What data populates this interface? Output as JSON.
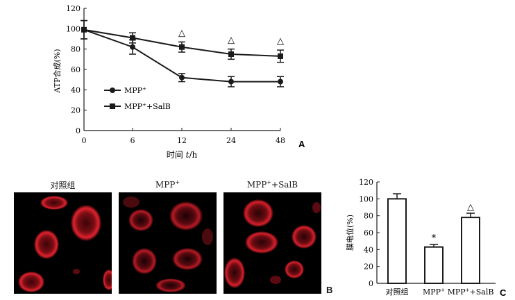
{
  "panelA": {
    "letter": "A",
    "chart_data": {
      "type": "line",
      "x": [
        0,
        6,
        12,
        24,
        48
      ],
      "xticks": [
        "0",
        "6",
        "12",
        "24",
        "48"
      ],
      "xlabel_main": "时间 ",
      "xlabel_var": "t",
      "xlabel_unit": "/h",
      "ylabel": "ATP合成(%)",
      "ylim": [
        0,
        120
      ],
      "yticks": [
        "0",
        "20",
        "40",
        "60",
        "80",
        "100",
        "120"
      ],
      "legend_position": "lower-left",
      "series": [
        {
          "name": "MPP+",
          "legend_base": "MPP",
          "legend_sup": "+",
          "legend_suffix": "",
          "marker": "circle",
          "values": [
            99,
            82,
            52,
            48,
            48
          ],
          "errors": [
            9,
            7,
            4,
            5,
            5
          ]
        },
        {
          "name": "MPP+ +SalB",
          "legend_base": "MPP",
          "legend_sup": "+",
          "legend_suffix": "+SalB",
          "marker": "square",
          "values": [
            99,
            91,
            82,
            75,
            73
          ],
          "errors": [
            9,
            5,
            5,
            5,
            6
          ]
        }
      ],
      "annotations": [
        {
          "x": 12,
          "text": "△"
        },
        {
          "x": 24,
          "text": "△"
        },
        {
          "x": 48,
          "text": "△"
        }
      ]
    }
  },
  "panelB": {
    "letter": "B",
    "titles": [
      {
        "base": "对照组",
        "sup": "",
        "suffix": ""
      },
      {
        "base": "MPP",
        "sup": "+",
        "suffix": ""
      },
      {
        "base": "MPP",
        "sup": "+",
        "suffix": "+SalB"
      }
    ]
  },
  "panelC": {
    "letter": "C",
    "chart_data": {
      "type": "bar",
      "categories": [
        "对照组",
        "MPP+",
        "MPP+ +SalB"
      ],
      "category_labels": [
        {
          "base": "对照组",
          "sup": "",
          "suffix": ""
        },
        {
          "base": "MPP",
          "sup": "+",
          "suffix": ""
        },
        {
          "base": "MPP",
          "sup": "+",
          "suffix": "+SalB"
        }
      ],
      "values": [
        100,
        43,
        78
      ],
      "errors": [
        6,
        3,
        5
      ],
      "ylabel": "膜电位(%)",
      "ylim": [
        0,
        120
      ],
      "yticks": [
        "0",
        "20",
        "40",
        "60",
        "80",
        "100",
        "120"
      ],
      "annotations": [
        {
          "category": 1,
          "text": "*"
        },
        {
          "category": 2,
          "text": "△"
        }
      ]
    }
  },
  "colors": {
    "ink": "#1a1a1a",
    "fluorescence": "#e0222e",
    "background": "#000000"
  }
}
